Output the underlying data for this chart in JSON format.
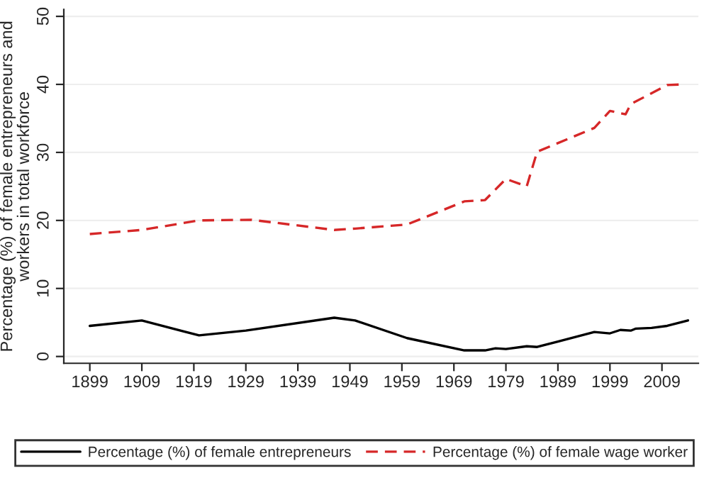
{
  "chart_data": {
    "type": "line",
    "ylabel": "Percentage (%) of female entrepreneurs and\nworkers in total workforce",
    "xlim": [
      1894,
      2016
    ],
    "xticks": [
      1899,
      1909,
      1919,
      1929,
      1939,
      1949,
      1959,
      1969,
      1979,
      1989,
      1999,
      2009
    ],
    "ylim": [
      -1,
      51
    ],
    "yticks": [
      0,
      10,
      20,
      30,
      40,
      50
    ],
    "grid": "y",
    "legend": "bottom",
    "series": [
      {
        "name": "Percentage (%) of female entrepreneurs",
        "color": "#000000",
        "line_style": "solid",
        "x": [
          1899,
          1909,
          1920,
          1929,
          1946,
          1950,
          1960,
          1971,
          1975,
          1977,
          1979,
          1983,
          1985,
          1989,
          1996,
          1999,
          2001,
          2003,
          2004,
          2007,
          2010,
          2014
        ],
        "values": [
          4.5,
          5.3,
          3.1,
          3.8,
          5.7,
          5.3,
          2.7,
          0.9,
          0.9,
          1.2,
          1.1,
          1.5,
          1.4,
          2.2,
          3.6,
          3.4,
          3.9,
          3.8,
          4.1,
          4.2,
          4.5,
          5.3
        ]
      },
      {
        "name": "Percentage (%) of female wage worker",
        "color": "#d62728",
        "line_style": "dashed",
        "x": [
          1899,
          1909,
          1920,
          1930,
          1946,
          1950,
          1960,
          1971,
          1975,
          1979,
          1983,
          1985,
          1996,
          1999,
          2002,
          2003,
          2010,
          2013
        ],
        "values": [
          18.0,
          18.6,
          20.0,
          20.1,
          18.6,
          18.8,
          19.4,
          22.8,
          23.0,
          26.1,
          25.0,
          30.1,
          33.6,
          36.1,
          35.6,
          37.1,
          39.9,
          40.0
        ]
      }
    ]
  }
}
